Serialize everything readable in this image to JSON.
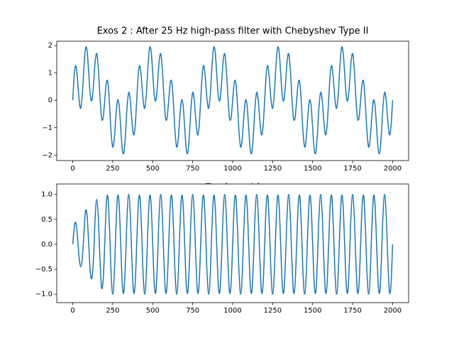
{
  "chart_data": [
    {
      "type": "line",
      "title": "Exos 2 : After 25 Hz high-pass filter with Chebyshev Type II",
      "xlabel": "Time [seconds]",
      "xlim": [
        -100,
        2100
      ],
      "ylim": [
        -2.2,
        2.16
      ],
      "xticks": [
        0,
        250,
        500,
        750,
        1000,
        1250,
        1500,
        1750,
        2000
      ],
      "yticks": [
        {
          "value": -2,
          "label": "−2"
        },
        {
          "value": -1,
          "label": "−1"
        },
        0,
        1,
        2
      ],
      "x": [
        0,
        10,
        20,
        30,
        40,
        50,
        60,
        70,
        80,
        90,
        100,
        110,
        120,
        130,
        140,
        150,
        160,
        170,
        180,
        190,
        200,
        210,
        220,
        230,
        240,
        250,
        260,
        270,
        280,
        290,
        300,
        310,
        320,
        330,
        340,
        350,
        360,
        370,
        380,
        390,
        400,
        410,
        420,
        430,
        440,
        450,
        460,
        470,
        480,
        490,
        500,
        510,
        520,
        530,
        540,
        550,
        560,
        570,
        580,
        590,
        600,
        610,
        620,
        630,
        640,
        650,
        660,
        670,
        680,
        690,
        700,
        710,
        720,
        730,
        740,
        750,
        760,
        770,
        780,
        790,
        800,
        810,
        820,
        830,
        840,
        850,
        860,
        870,
        880,
        890,
        900,
        910,
        920,
        930,
        940,
        950,
        960,
        970,
        980,
        990,
        1000,
        1010,
        1020,
        1030,
        1040,
        1050,
        1060,
        1070,
        1080,
        1090,
        1100,
        1110,
        1120,
        1130,
        1140,
        1150,
        1160,
        1170,
        1180,
        1190,
        1200,
        1210,
        1220,
        1230,
        1240,
        1250,
        1260,
        1270,
        1280,
        1290,
        1300,
        1310,
        1320,
        1330,
        1340,
        1350,
        1360,
        1370,
        1380,
        1390,
        1400,
        1410,
        1420,
        1430,
        1440,
        1450,
        1460,
        1470,
        1480,
        1490,
        1500,
        1510,
        1520,
        1530,
        1540,
        1550,
        1560,
        1570,
        1580,
        1590,
        1600,
        1610,
        1620,
        1630,
        1640,
        1650,
        1660,
        1670,
        1680,
        1690,
        1700,
        1710,
        1720,
        1730,
        1740,
        1750,
        1760,
        1770,
        1780,
        1790,
        1800,
        1810,
        1820,
        1830,
        1840,
        1850,
        1860,
        1870,
        1880,
        1890,
        1900,
        1910,
        1920,
        1930,
        1940,
        1950,
        1960,
        1970,
        1980,
        1990,
        2000
      ],
      "series": [
        {
          "color": "#1f77b4",
          "values": [
            0,
            0.97,
            1.26,
            0.76,
            0,
            -0.29,
            0.22,
            1.2,
            1.9,
            1.8,
            1,
            0.18,
            0,
            0.58,
            1.4,
            1.71,
            1.18,
            0.15,
            -0.64,
            -0.65,
            0,
            0.65,
            0.64,
            -0.15,
            -1.18,
            -1.71,
            -1.4,
            -0.58,
            0,
            -0.18,
            -1,
            -1.8,
            -1.9,
            -1.2,
            -0.22,
            0.29,
            0,
            -0.76,
            -1.26,
            -0.97,
            0,
            0.97,
            1.26,
            0.76,
            0,
            -0.29,
            0.22,
            1.2,
            1.9,
            1.8,
            1,
            0.18,
            0,
            0.58,
            1.4,
            1.71,
            1.18,
            0.15,
            -0.64,
            -0.65,
            0,
            0.65,
            0.64,
            -0.15,
            -1.18,
            -1.71,
            -1.4,
            -0.58,
            0,
            -0.18,
            -1,
            -1.8,
            -1.9,
            -1.2,
            -0.22,
            0.29,
            0,
            -0.76,
            -1.26,
            -0.97,
            0,
            0.97,
            1.26,
            0.76,
            0,
            -0.29,
            0.22,
            1.2,
            1.9,
            1.8,
            1,
            0.18,
            0,
            0.58,
            1.4,
            1.71,
            1.18,
            0.15,
            -0.64,
            -0.65,
            0,
            0.65,
            0.64,
            -0.15,
            -1.18,
            -1.71,
            -1.4,
            -0.58,
            0,
            -0.18,
            -1,
            -1.8,
            -1.9,
            -1.2,
            -0.22,
            0.29,
            0,
            -0.76,
            -1.26,
            -0.97,
            0,
            0.97,
            1.26,
            0.76,
            0,
            -0.29,
            0.22,
            1.2,
            1.9,
            1.8,
            1,
            0.18,
            0,
            0.58,
            1.4,
            1.71,
            1.18,
            0.15,
            -0.64,
            -0.65,
            0,
            0.65,
            0.64,
            -0.15,
            -1.18,
            -1.71,
            -1.4,
            -0.58,
            0,
            -0.18,
            -1,
            -1.8,
            -1.9,
            -1.2,
            -0.22,
            0.29,
            0,
            -0.76,
            -1.26,
            -0.97,
            0,
            0.97,
            1.26,
            0.76,
            0,
            -0.29,
            0.22,
            1.2,
            1.9,
            1.8,
            1,
            0.18,
            0,
            0.58,
            1.4,
            1.71,
            1.18,
            0.15,
            -0.64,
            -0.65,
            0,
            0.65,
            0.64,
            -0.15,
            -1.18,
            -1.71,
            -1.4,
            -0.58,
            0,
            -0.18,
            -1,
            -1.8,
            -1.9,
            -1.2,
            -0.22,
            0.29,
            0,
            -0.76,
            -1.26,
            -0.97,
            0
          ]
        }
      ]
    },
    {
      "type": "line",
      "xlim": [
        -100,
        2100
      ],
      "ylim": [
        -1.17,
        1.21
      ],
      "xticks": [
        0,
        250,
        500,
        750,
        1000,
        1250,
        1500,
        1750,
        2000
      ],
      "yticks": [
        {
          "value": -1,
          "label": "−1.0"
        },
        {
          "value": -0.5,
          "label": "−0.5"
        },
        {
          "value": 0,
          "label": "0.0"
        },
        0.5,
        {
          "value": 1,
          "label": "1.0"
        }
      ],
      "x": [
        0,
        10,
        20,
        30,
        40,
        50,
        60,
        70,
        80,
        90,
        100,
        110,
        120,
        130,
        140,
        150,
        160,
        170,
        180,
        190,
        200,
        210,
        220,
        230,
        240,
        250,
        260,
        270,
        280,
        290,
        300,
        310,
        320,
        330,
        340,
        350,
        360,
        370,
        380,
        390,
        400,
        410,
        420,
        430,
        440,
        450,
        460,
        470,
        480,
        490,
        500,
        510,
        520,
        530,
        540,
        550,
        560,
        570,
        580,
        590,
        600,
        610,
        620,
        630,
        640,
        650,
        660,
        670,
        680,
        690,
        700,
        710,
        720,
        730,
        740,
        750,
        760,
        770,
        780,
        790,
        800,
        810,
        820,
        830,
        840,
        850,
        860,
        870,
        880,
        890,
        900,
        910,
        920,
        930,
        940,
        950,
        960,
        970,
        980,
        990,
        1000,
        1010,
        1020,
        1030,
        1040,
        1050,
        1060,
        1070,
        1080,
        1090,
        1100,
        1110,
        1120,
        1130,
        1140,
        1150,
        1160,
        1170,
        1180,
        1190,
        1200,
        1210,
        1220,
        1230,
        1240,
        1250,
        1260,
        1270,
        1280,
        1290,
        1300,
        1310,
        1320,
        1330,
        1340,
        1350,
        1360,
        1370,
        1380,
        1390,
        1400,
        1410,
        1420,
        1430,
        1440,
        1450,
        1460,
        1470,
        1480,
        1490,
        1500,
        1510,
        1520,
        1530,
        1540,
        1550,
        1560,
        1570,
        1580,
        1590,
        1600,
        1610,
        1620,
        1630,
        1640,
        1650,
        1660,
        1670,
        1680,
        1690,
        1700,
        1710,
        1720,
        1730,
        1740,
        1750,
        1760,
        1770,
        1780,
        1790,
        1800,
        1810,
        1820,
        1830,
        1840,
        1850,
        1860,
        1870,
        1880,
        1890,
        1900,
        1910,
        1920,
        1930,
        1940,
        1950,
        1960,
        1970,
        1980,
        1990,
        2000
      ],
      "series": [
        {
          "color": "#1f77b4",
          "values": [
            0,
            0.36,
            0.43,
            0.14,
            -0.27,
            -0.45,
            -0.27,
            0.22,
            0.67,
            0.57,
            0,
            -0.57,
            -0.67,
            -0.28,
            0.53,
            0.9,
            0.53,
            -0.28,
            -0.86,
            -0.73,
            0,
            0.81,
            0.95,
            0.31,
            -0.59,
            -1,
            -0.59,
            0.31,
            0.95,
            0.81,
            0,
            -0.81,
            -0.95,
            -0.31,
            0.59,
            1,
            0.59,
            -0.31,
            -0.95,
            -0.81,
            0,
            0.81,
            0.95,
            0.31,
            -0.59,
            -1,
            -0.59,
            0.31,
            0.95,
            0.81,
            0,
            -0.81,
            -0.95,
            -0.31,
            0.59,
            1,
            0.59,
            -0.31,
            -0.95,
            -0.81,
            0,
            0.81,
            0.95,
            0.31,
            -0.59,
            -1,
            -0.59,
            0.31,
            0.95,
            0.81,
            0,
            -0.81,
            -0.95,
            -0.31,
            0.59,
            1,
            0.59,
            -0.31,
            -0.95,
            -0.81,
            0,
            0.81,
            0.95,
            0.31,
            -0.59,
            -1,
            -0.59,
            0.31,
            0.95,
            0.81,
            0,
            -0.81,
            -0.95,
            -0.31,
            0.59,
            1,
            0.59,
            -0.31,
            -0.95,
            -0.81,
            0,
            0.81,
            0.95,
            0.31,
            -0.59,
            -1,
            -0.59,
            0.31,
            0.95,
            0.81,
            0,
            -0.81,
            -0.95,
            -0.31,
            0.59,
            1,
            0.59,
            -0.31,
            -0.95,
            -0.81,
            0,
            0.81,
            0.95,
            0.31,
            -0.59,
            -1,
            -0.59,
            0.31,
            0.95,
            0.81,
            0,
            -0.81,
            -0.95,
            -0.31,
            0.59,
            1,
            0.59,
            -0.31,
            -0.95,
            -0.81,
            0,
            0.81,
            0.95,
            0.31,
            -0.59,
            -1,
            -0.59,
            0.31,
            0.95,
            0.81,
            0,
            -0.81,
            -0.95,
            -0.31,
            0.59,
            1,
            0.59,
            -0.31,
            -0.95,
            -0.81,
            0,
            0.81,
            0.95,
            0.31,
            -0.59,
            -1,
            -0.59,
            0.31,
            0.95,
            0.81,
            0,
            -0.81,
            -0.95,
            -0.31,
            0.59,
            1,
            0.59,
            -0.31,
            -0.95,
            -0.81,
            0,
            0.81,
            0.95,
            0.31,
            -0.59,
            -1,
            -0.59,
            0.31,
            0.95,
            0.81,
            0,
            -0.81,
            -0.95,
            -0.31,
            0.59,
            1,
            0.59,
            -0.31,
            -0.95,
            -0.81,
            0
          ]
        }
      ]
    }
  ]
}
